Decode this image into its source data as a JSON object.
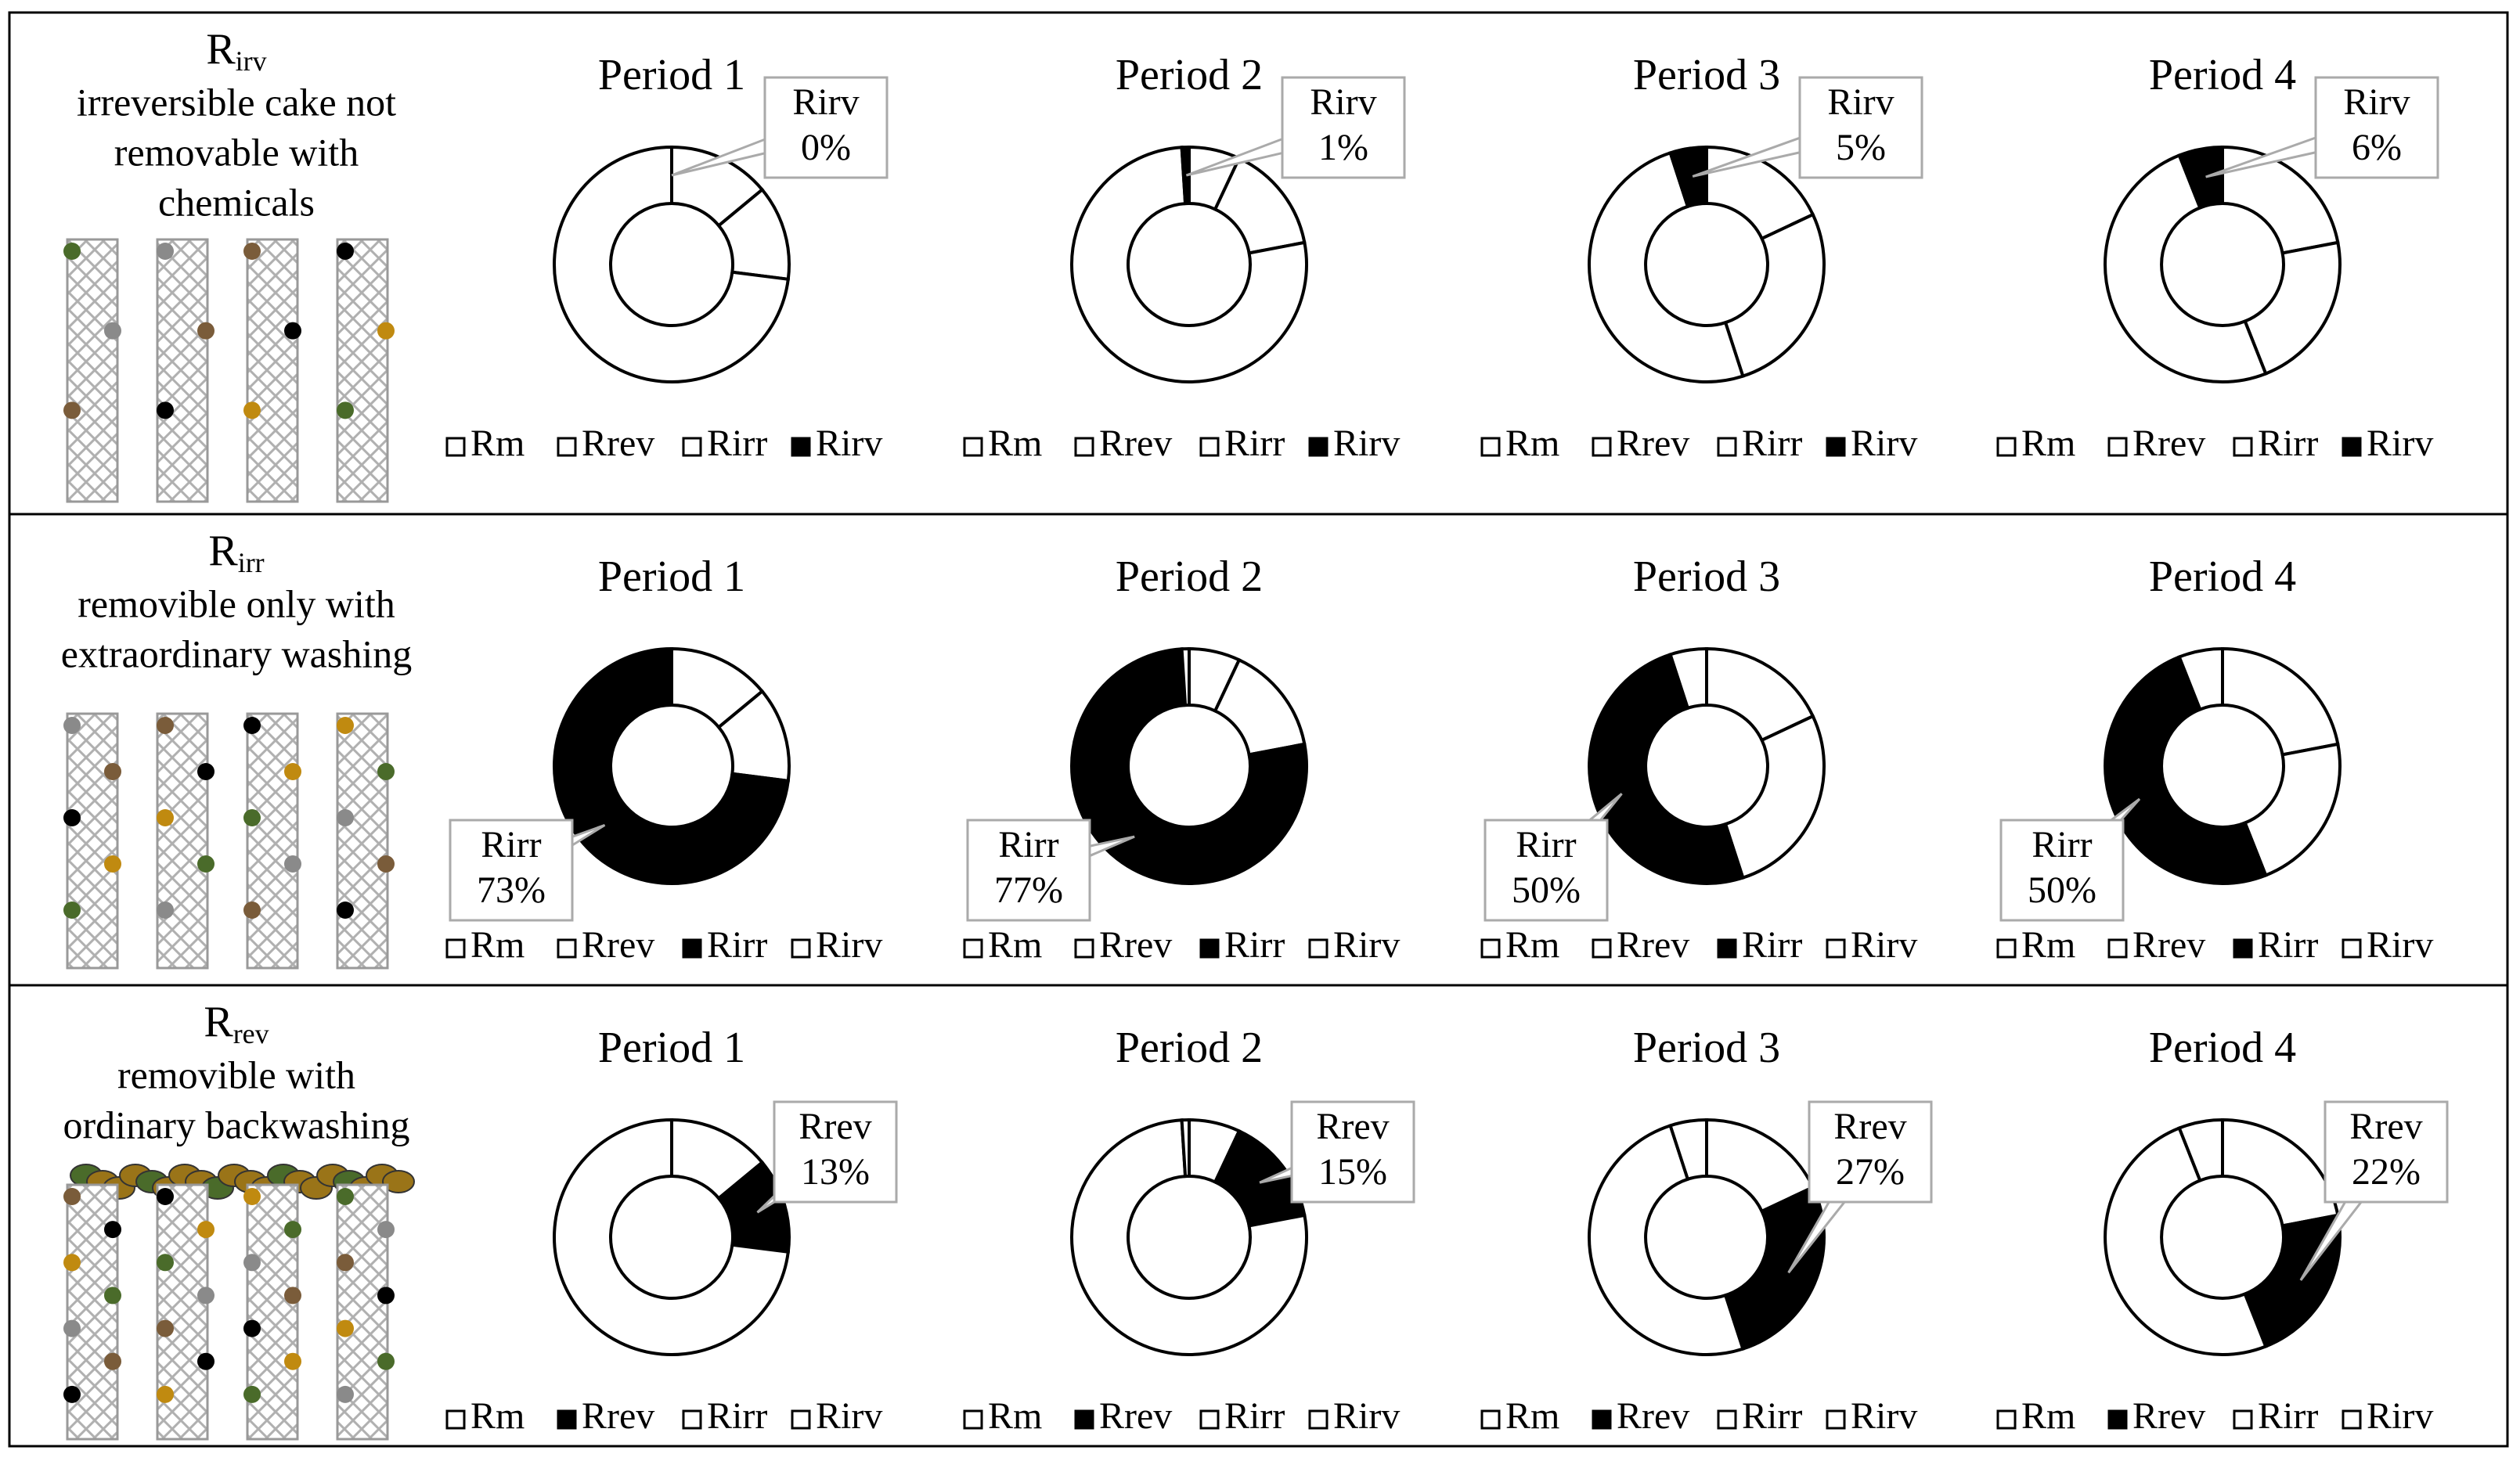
{
  "row_labels": [
    {
      "symbol": "R",
      "subscript": "irv",
      "lines": [
        "irreversible cake not",
        "removable with",
        "chemicals"
      ]
    },
    {
      "symbol": "R",
      "subscript": "irr",
      "lines": [
        "removible only with",
        "extraordinary washing"
      ]
    },
    {
      "symbol": "R",
      "subscript": "rev",
      "lines": [
        "removible with",
        "ordinary backwashing"
      ]
    }
  ],
  "chart_data": [
    {
      "type": "doughnut",
      "title": "Period 1",
      "categories": [
        "Rm",
        "Rrev",
        "Rirr",
        "Rirv"
      ],
      "values": [
        14,
        13,
        73,
        0
      ],
      "colors": [
        "#ffffff",
        "#ffffff",
        "#ffffff",
        "#000000"
      ],
      "value_labels": [
        null,
        null,
        null,
        "0%"
      ]
    },
    {
      "type": "doughnut",
      "title": "Period 2",
      "categories": [
        "Rm",
        "Rrev",
        "Rirr",
        "Rirv"
      ],
      "values": [
        7,
        15,
        77,
        1
      ],
      "colors": [
        "#ffffff",
        "#ffffff",
        "#ffffff",
        "#000000"
      ],
      "value_labels": [
        null,
        null,
        null,
        "1%"
      ]
    },
    {
      "type": "doughnut",
      "title": "Period 3",
      "categories": [
        "Rm",
        "Rrev",
        "Rirr",
        "Rirv"
      ],
      "values": [
        18,
        27,
        50,
        5
      ],
      "colors": [
        "#ffffff",
        "#ffffff",
        "#ffffff",
        "#000000"
      ],
      "value_labels": [
        null,
        null,
        null,
        "5%"
      ]
    },
    {
      "type": "doughnut",
      "title": "Period 4",
      "categories": [
        "Rm",
        "Rrev",
        "Rirr",
        "Rirv"
      ],
      "values": [
        22,
        22,
        50,
        6
      ],
      "colors": [
        "#ffffff",
        "#ffffff",
        "#ffffff",
        "#000000"
      ],
      "value_labels": [
        null,
        null,
        null,
        "6%"
      ]
    },
    {
      "type": "doughnut",
      "title": "Period 1",
      "categories": [
        "Rm",
        "Rrev",
        "Rirr",
        "Rirv"
      ],
      "values": [
        14,
        13,
        73,
        0
      ],
      "colors": [
        "#ffffff",
        "#ffffff",
        "#000000",
        "#ffffff"
      ],
      "value_labels": [
        null,
        null,
        "73%",
        null
      ]
    },
    {
      "type": "doughnut",
      "title": "Period 2",
      "categories": [
        "Rm",
        "Rrev",
        "Rirr",
        "Rirv"
      ],
      "values": [
        7,
        15,
        77,
        1
      ],
      "colors": [
        "#ffffff",
        "#ffffff",
        "#000000",
        "#ffffff"
      ],
      "value_labels": [
        null,
        null,
        "77%",
        null
      ]
    },
    {
      "type": "doughnut",
      "title": "Period 3",
      "categories": [
        "Rm",
        "Rrev",
        "Rirr",
        "Rirv"
      ],
      "values": [
        18,
        27,
        50,
        5
      ],
      "colors": [
        "#ffffff",
        "#ffffff",
        "#000000",
        "#ffffff"
      ],
      "value_labels": [
        null,
        null,
        "50%",
        null
      ]
    },
    {
      "type": "doughnut",
      "title": "Period 4",
      "categories": [
        "Rm",
        "Rrev",
        "Rirr",
        "Rirv"
      ],
      "values": [
        22,
        22,
        50,
        6
      ],
      "colors": [
        "#ffffff",
        "#ffffff",
        "#000000",
        "#ffffff"
      ],
      "value_labels": [
        null,
        null,
        "50%",
        null
      ]
    },
    {
      "type": "doughnut",
      "title": "Period 1",
      "categories": [
        "Rm",
        "Rrev",
        "Rirr",
        "Rirv"
      ],
      "values": [
        14,
        13,
        73,
        0
      ],
      "colors": [
        "#ffffff",
        "#000000",
        "#ffffff",
        "#ffffff"
      ],
      "value_labels": [
        null,
        "13%",
        null,
        null
      ]
    },
    {
      "type": "doughnut",
      "title": "Period 2",
      "categories": [
        "Rm",
        "Rrev",
        "Rirr",
        "Rirv"
      ],
      "values": [
        7,
        15,
        77,
        1
      ],
      "colors": [
        "#ffffff",
        "#000000",
        "#ffffff",
        "#ffffff"
      ],
      "value_labels": [
        null,
        "15%",
        null,
        null
      ]
    },
    {
      "type": "doughnut",
      "title": "Period 3",
      "categories": [
        "Rm",
        "Rrev",
        "Rirr",
        "Rirv"
      ],
      "values": [
        18,
        27,
        50,
        5
      ],
      "colors": [
        "#ffffff",
        "#000000",
        "#ffffff",
        "#ffffff"
      ],
      "value_labels": [
        null,
        "27%",
        null,
        null
      ]
    },
    {
      "type": "doughnut",
      "title": "Period 4",
      "categories": [
        "Rm",
        "Rrev",
        "Rirr",
        "Rirv"
      ],
      "values": [
        22,
        22,
        50,
        6
      ],
      "colors": [
        "#ffffff",
        "#000000",
        "#ffffff",
        "#ffffff"
      ],
      "value_labels": [
        null,
        "22%",
        null,
        null
      ]
    }
  ]
}
